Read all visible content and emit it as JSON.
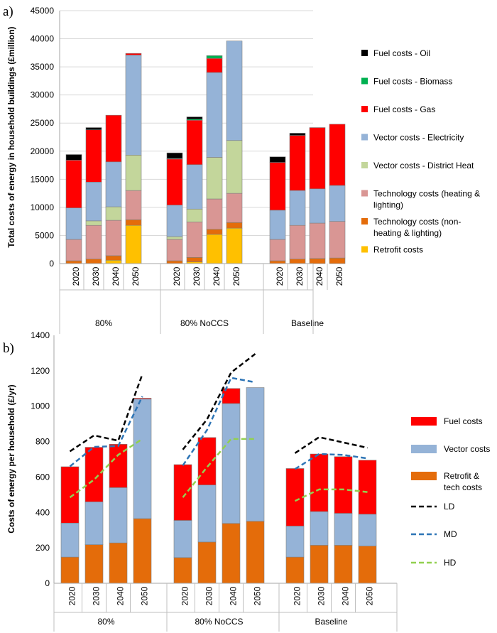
{
  "chart_data": [
    {
      "type": "bar",
      "stacked": true,
      "panel_label": "a)",
      "ylabel": "Total costs of energy in household buildings (£million)",
      "ylim": [
        0,
        45000
      ],
      "yticks": [
        0,
        5000,
        10000,
        15000,
        20000,
        25000,
        30000,
        35000,
        40000,
        45000
      ],
      "grid": true,
      "legend_position": "right",
      "groups": [
        "80%",
        "80% NoCCS",
        "Baseline"
      ],
      "categories": [
        "2020",
        "2030",
        "2040",
        "2050"
      ],
      "series": [
        {
          "name": "Retrofit costs",
          "color": "#ffc000",
          "values": [
            [
              0,
              0,
              600,
              6800
            ],
            [
              0,
              300,
              5200,
              6300
            ],
            [
              0,
              0,
              0,
              0
            ]
          ]
        },
        {
          "name": "Technology costs (non-heating & lighting)",
          "color": "#e46c0a",
          "values": [
            [
              500,
              800,
              800,
              1000
            ],
            [
              500,
              800,
              900,
              1000
            ],
            [
              500,
              800,
              900,
              1000
            ]
          ]
        },
        {
          "name": "Technology costs (heating & lighting)",
          "color": "#d99694",
          "values": [
            [
              3800,
              6000,
              6300,
              5200
            ],
            [
              3800,
              6300,
              5400,
              5200
            ],
            [
              3800,
              6000,
              6300,
              6500
            ]
          ]
        },
        {
          "name": "Vector costs - District Heat",
          "color": "#c3d69b",
          "values": [
            [
              0,
              800,
              2400,
              6300
            ],
            [
              500,
              2300,
              7400,
              9400
            ],
            [
              0,
              0,
              0,
              0
            ]
          ]
        },
        {
          "name": "Vector costs - Electricity",
          "color": "#95b3d7",
          "values": [
            [
              5600,
              6900,
              8000,
              17800
            ],
            [
              5600,
              7900,
              15100,
              17700
            ],
            [
              5200,
              6200,
              6100,
              6400
            ]
          ]
        },
        {
          "name": "Fuel costs - Gas",
          "color": "#ff0000",
          "values": [
            [
              8500,
              9300,
              8300,
              300
            ],
            [
              8200,
              7900,
              2500,
              0
            ],
            [
              8500,
              9800,
              10900,
              10900
            ]
          ]
        },
        {
          "name": "Fuel costs - Biomass",
          "color": "#00b050",
          "values": [
            [
              0,
              0,
              0,
              0
            ],
            [
              100,
              200,
              500,
              0
            ],
            [
              0,
              0,
              0,
              0
            ]
          ]
        },
        {
          "name": "Fuel costs - Oil",
          "color": "#000000",
          "values": [
            [
              1000,
              400,
              0,
              0
            ],
            [
              1000,
              400,
              0,
              0
            ],
            [
              1000,
              400,
              0,
              0
            ]
          ]
        }
      ]
    },
    {
      "type": "bar",
      "stacked": true,
      "panel_label": "b)",
      "ylabel": "Costs of energy per household (£/yr)",
      "ylim": [
        0,
        1400
      ],
      "yticks": [
        0,
        200,
        400,
        600,
        800,
        1000,
        1200,
        1400
      ],
      "grid": false,
      "legend_position": "right",
      "groups": [
        "80%",
        "80% NoCCS",
        "Baseline"
      ],
      "categories": [
        "2020",
        "2030",
        "2040",
        "2050"
      ],
      "series": [
        {
          "name": "Retrofit & tech costs",
          "color": "#e46c0a",
          "values": [
            [
              148,
              218,
              228,
              365
            ],
            [
              145,
              233,
              338,
              350
            ],
            [
              148,
              215,
              215,
              210
            ]
          ]
        },
        {
          "name": "Vector costs",
          "color": "#95b3d7",
          "values": [
            [
              192,
              242,
              312,
              675
            ],
            [
              210,
              322,
              677,
              755
            ],
            [
              175,
              190,
              180,
              180
            ]
          ]
        },
        {
          "name": "Fuel costs",
          "color": "#ff0000",
          "values": [
            [
              318,
              308,
              245,
              5
            ],
            [
              315,
              268,
              85,
              0
            ],
            [
              325,
              325,
              320,
              305
            ]
          ]
        }
      ],
      "lines": [
        {
          "name": "LD",
          "color": "#000000",
          "values": [
            [
              745,
              835,
              805,
              1180
            ],
            [
              755,
              925,
              1190,
              1295
            ],
            [
              735,
              825,
              795,
              765
            ]
          ]
        },
        {
          "name": "MD",
          "color": "#2e75b6",
          "values": [
            [
              660,
              770,
              775,
              1055
            ],
            [
              665,
              865,
              1160,
              1135
            ],
            [
              645,
              730,
              725,
              705
            ]
          ]
        },
        {
          "name": "HD",
          "color": "#92d050",
          "values": [
            [
              485,
              585,
              725,
              815
            ],
            [
              485,
              655,
              815,
              815
            ],
            [
              465,
              530,
              530,
              515
            ]
          ]
        }
      ]
    }
  ]
}
